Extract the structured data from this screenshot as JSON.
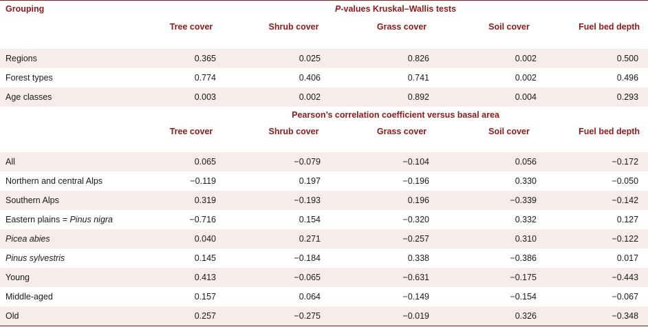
{
  "header": {
    "grouping_label": "Grouping",
    "section1_title_italic": "P",
    "section1_title_rest": "-values Kruskal–Wallis tests",
    "section2_title": "Pearson’s correlation coefficient versus basal area",
    "columns": [
      "Tree cover",
      "Shrub cover",
      "Grass cover",
      "Soil cover",
      "Fuel bed depth"
    ]
  },
  "section1_rows": [
    {
      "label": "Regions",
      "values": [
        "0.365",
        "0.025",
        "0.826",
        "0.002",
        "0.500"
      ]
    },
    {
      "label": "Forest types",
      "values": [
        "0.774",
        "0.406",
        "0.741",
        "0.002",
        "0.496"
      ]
    },
    {
      "label": "Age classes",
      "values": [
        "0.003",
        "0.002",
        "0.892",
        "0.004",
        "0.293"
      ]
    }
  ],
  "section2_rows": [
    {
      "label": "All",
      "values": [
        "0.065",
        "−0.079",
        "−0.104",
        "0.056",
        "−0.172"
      ]
    },
    {
      "label": "Northern and central Alps",
      "values": [
        "−0.119",
        "0.197",
        "−0.196",
        "0.330",
        "−0.050"
      ]
    },
    {
      "label": "Southern Alps",
      "values": [
        "0.319",
        "−0.193",
        "0.196",
        "−0.339",
        "−0.142"
      ]
    },
    {
      "label_plain": "Eastern plains = ",
      "label_italic": "Pinus nigra",
      "values": [
        "−0.716",
        "0.154",
        "−0.320",
        "0.332",
        "0.127"
      ]
    },
    {
      "label_italic": "Picea abies",
      "values": [
        "0.040",
        "0.271",
        "−0.257",
        "0.310",
        "−0.122"
      ]
    },
    {
      "label_italic": "Pinus sylvestris",
      "values": [
        "0.145",
        "−0.184",
        "0.338",
        "−0.386",
        "0.017"
      ]
    },
    {
      "label": "Young",
      "values": [
        "0.413",
        "−0.065",
        "−0.631",
        "−0.175",
        "−0.443"
      ]
    },
    {
      "label": "Middle-aged",
      "values": [
        "0.157",
        "0.064",
        "−0.149",
        "−0.154",
        "−0.067"
      ]
    },
    {
      "label": "Old",
      "values": [
        "0.257",
        "−0.275",
        "−0.019",
        "0.326",
        "−0.348"
      ]
    }
  ],
  "colors": {
    "header_text": "#8b1a1a",
    "shade": "#f6ecea",
    "rule": "#8b1a1a"
  }
}
